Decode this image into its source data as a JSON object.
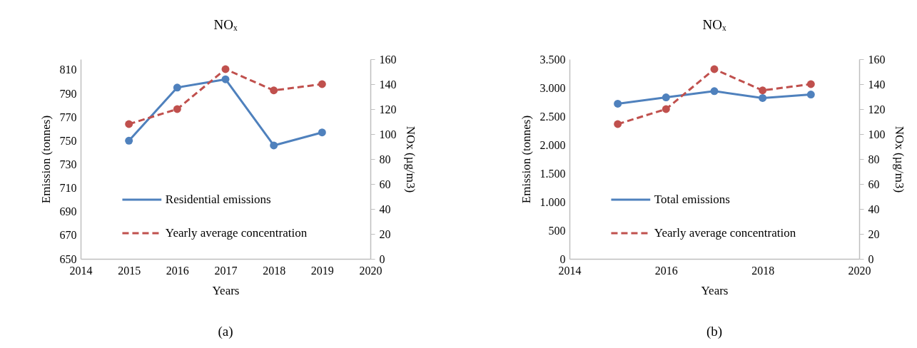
{
  "chart_data": [
    {
      "type": "line",
      "title": "NOₓ",
      "xlabel": "Years",
      "ylabel": "Emission (tonnes)",
      "y2label": "NOx (µg/m3)",
      "x": [
        2015,
        2016,
        2017,
        2018,
        2019
      ],
      "xlim": [
        2014,
        2020
      ],
      "xticks": [
        2014,
        2015,
        2016,
        2017,
        2018,
        2019,
        2020
      ],
      "ylim": [
        650,
        819
      ],
      "yticks": [
        650,
        670,
        690,
        710,
        730,
        750,
        770,
        790,
        810
      ],
      "y2lim": [
        0,
        160
      ],
      "y2ticks": [
        0,
        20,
        40,
        60,
        80,
        100,
        120,
        140,
        160
      ],
      "marker": "circle",
      "legend": "bottom",
      "annotations": [
        "(a)"
      ],
      "series": [
        {
          "name": "Residential emissions",
          "color": "#4f81bd",
          "line_style": "solid",
          "values": [
            750,
            795,
            802,
            746,
            757
          ]
        },
        {
          "name": "Yearly average concentration",
          "color": "#c0504d",
          "line_style": "dashed",
          "axis": "y2",
          "values": [
            108,
            120,
            152,
            135,
            140
          ]
        }
      ]
    },
    {
      "type": "line",
      "title": "NOₓ",
      "xlabel": "Years",
      "ylabel": "Emission (tonnes)",
      "y2label": "NOx (µg/m3)",
      "x": [
        2015,
        2016,
        2017,
        2018,
        2019
      ],
      "xlim": [
        2014,
        2020
      ],
      "xticks": [
        2014,
        2016,
        2018,
        2020
      ],
      "ylim": [
        0,
        3500
      ],
      "yticks": [
        0,
        500,
        {
          "value": 1000,
          "label": "1.000"
        },
        {
          "value": 1500,
          "label": "1.500"
        },
        {
          "value": 2000,
          "label": "2.000"
        },
        {
          "value": 2500,
          "label": "2.500"
        },
        {
          "value": 3000,
          "label": "3.000"
        },
        {
          "value": 3500,
          "label": "3.500"
        }
      ],
      "y2lim": [
        0,
        160
      ],
      "y2ticks": [
        0,
        20,
        40,
        60,
        80,
        100,
        120,
        140,
        160
      ],
      "marker": "circle",
      "legend": "bottom",
      "annotations": [
        "(b)"
      ],
      "series": [
        {
          "name": "Total emissions",
          "color": "#4f81bd",
          "line_style": "solid",
          "values": [
            2720,
            2830,
            2940,
            2820,
            2880
          ]
        },
        {
          "name": "Yearly average concentration",
          "color": "#c0504d",
          "line_style": "dashed",
          "axis": "y2",
          "values": [
            108,
            120,
            152,
            135,
            140
          ]
        }
      ]
    }
  ]
}
